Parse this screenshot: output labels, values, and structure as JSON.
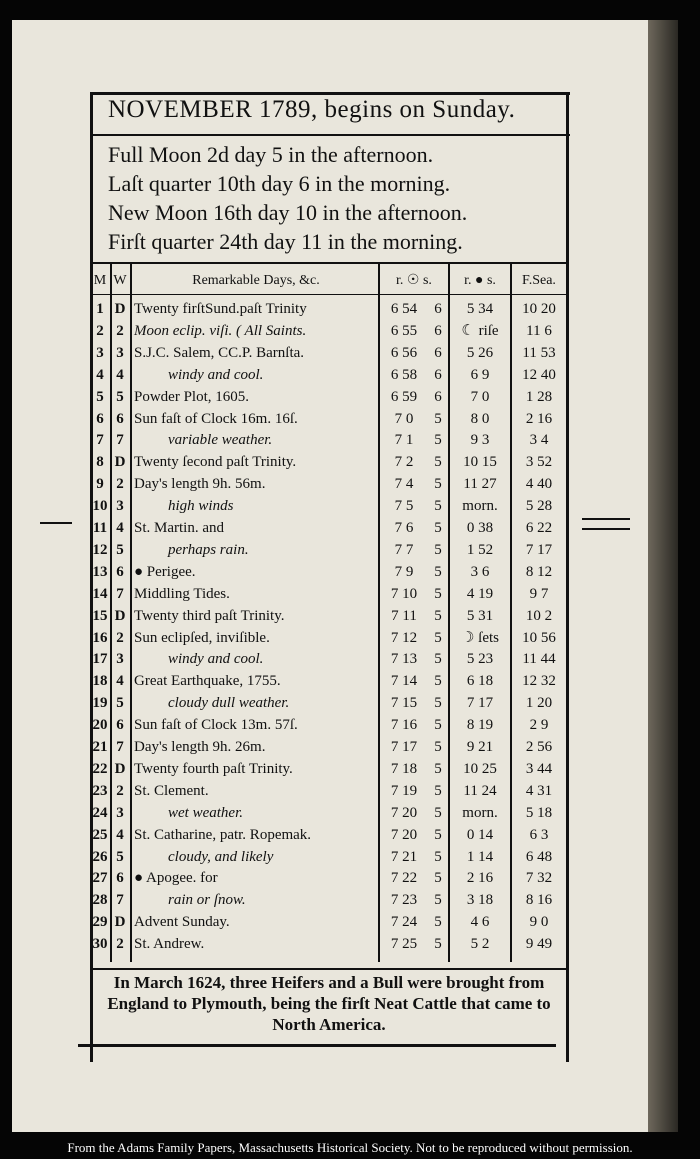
{
  "header": {
    "title": "NOVEMBER 1789, begins on Sunday."
  },
  "moon_phases": [
    "Full Moon 2d day 5 in the afternoon.",
    "Laſt quarter 10th day 6 in the morning.",
    "New Moon 16th day 10 in the afternoon.",
    "Firſt quarter 24th day 11 in the morning."
  ],
  "table": {
    "headers": [
      "M",
      "W",
      "Remarkable Days, &c.",
      "r. ☉ s.",
      "r. ● s.",
      "F.Sea."
    ],
    "rows": [
      [
        "1",
        "D",
        "Twenty firſtSund.paſt Trinity",
        "6 54",
        "6",
        "5 34",
        "10 20"
      ],
      [
        "2",
        "2",
        "Moon eclip. viſi. ( All Saints.",
        "6 55",
        "6",
        "☾ riſe",
        "11 6"
      ],
      [
        "3",
        "3",
        "S.J.C. Salem, CC.P. Barnſta.",
        "6 56",
        "6",
        "5 26",
        "11 53"
      ],
      [
        "4",
        "4",
        "windy and cool.",
        "6 58",
        "6",
        "6 9",
        "12 40"
      ],
      [
        "5",
        "5",
        "Powder Plot, 1605.",
        "6 59",
        "6",
        "7 0",
        "1 28"
      ],
      [
        "6",
        "6",
        "Sun faſt of Clock 16m. 16ſ.",
        "7 0",
        "5",
        "8 0",
        "2 16"
      ],
      [
        "7",
        "7",
        "variable weather.",
        "7 1",
        "5",
        "9 3",
        "3 4"
      ],
      [
        "8",
        "D",
        "Twenty ſecond paſt Trinity.",
        "7 2",
        "5",
        "10 15",
        "3 52"
      ],
      [
        "9",
        "2",
        "Day's length 9h. 56m.",
        "7 4",
        "5",
        "11 27",
        "4 40"
      ],
      [
        "10",
        "3",
        "high winds",
        "7 5",
        "5",
        "morn.",
        "5 28"
      ],
      [
        "11",
        "4",
        "St. Martin.     and",
        "7 6",
        "5",
        "0 38",
        "6 22"
      ],
      [
        "12",
        "5",
        "perhaps rain.",
        "7 7",
        "5",
        "1 52",
        "7 17"
      ],
      [
        "13",
        "6",
        "● Perigee.",
        "7 9",
        "5",
        "3 6",
        "8 12"
      ],
      [
        "14",
        "7",
        "Middling Tides.",
        "7 10",
        "5",
        "4 19",
        "9 7"
      ],
      [
        "15",
        "D",
        "Twenty third paſt Trinity.",
        "7 11",
        "5",
        "5 31",
        "10 2"
      ],
      [
        "16",
        "2",
        "Sun eclipſed, inviſible.",
        "7 12",
        "5",
        "☽ ſets",
        "10 56"
      ],
      [
        "17",
        "3",
        "windy and cool.",
        "7 13",
        "5",
        "5 23",
        "11 44"
      ],
      [
        "18",
        "4",
        "Great Earthquake, 1755.",
        "7 14",
        "5",
        "6 18",
        "12 32"
      ],
      [
        "19",
        "5",
        "cloudy dull weather.",
        "7 15",
        "5",
        "7 17",
        "1 20"
      ],
      [
        "20",
        "6",
        "Sun faſt of Clock 13m. 57ſ.",
        "7 16",
        "5",
        "8 19",
        "2 9"
      ],
      [
        "21",
        "7",
        "Day's length 9h. 26m.",
        "7 17",
        "5",
        "9 21",
        "2 56"
      ],
      [
        "22",
        "D",
        "Twenty fourth paſt Trinity.",
        "7 18",
        "5",
        "10 25",
        "3 44"
      ],
      [
        "23",
        "2",
        "St. Clement.",
        "7 19",
        "5",
        "11 24",
        "4 31"
      ],
      [
        "24",
        "3",
        "wet weather.",
        "7 20",
        "5",
        "morn.",
        "5 18"
      ],
      [
        "25",
        "4",
        "St. Catharine, patr. Ropemak.",
        "7 20",
        "5",
        "0 14",
        "6 3"
      ],
      [
        "26",
        "5",
        "cloudy, and likely",
        "7 21",
        "5",
        "1 14",
        "6 48"
      ],
      [
        "27",
        "6",
        "● Apogee.     for",
        "7 22",
        "5",
        "2 16",
        "7 32"
      ],
      [
        "28",
        "7",
        "rain or ſnow.",
        "7 23",
        "5",
        "3 18",
        "8 16"
      ],
      [
        "29",
        "D",
        "Advent Sunday.",
        "7 24",
        "5",
        "4 6",
        "9 0"
      ],
      [
        "30",
        "2",
        "St. Andrew.",
        "7 25",
        "5",
        "5 2",
        "9 49"
      ]
    ]
  },
  "note": "In March 1624, three Heifers and a Bull were brought from England to Plymouth, being the firſt Neat Cattle that came to North America.",
  "caption": "From the Adams Family Papers, Massachusetts Historical Society. Not to be reproduced without permission."
}
